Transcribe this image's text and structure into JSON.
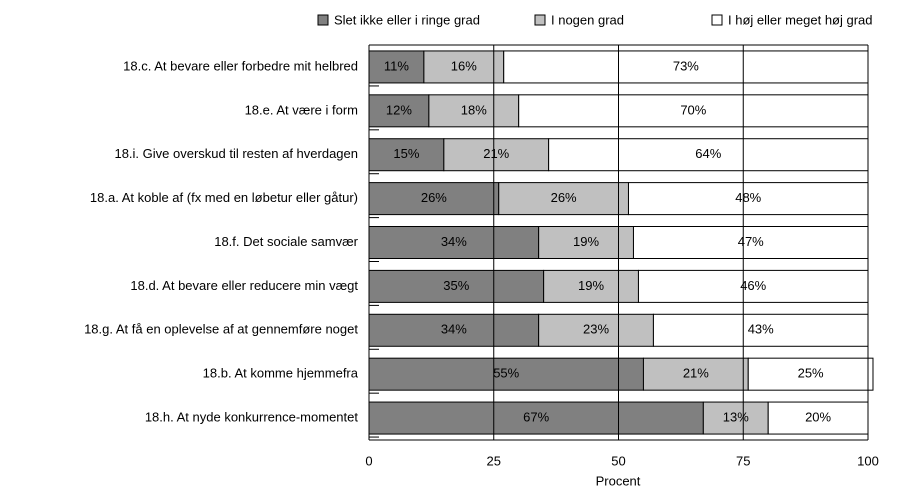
{
  "chart_data": {
    "type": "bar",
    "orientation": "horizontal",
    "stacked": true,
    "categories": [
      "18.c. At bevare eller forbedre mit helbred",
      "18.e. At være i form",
      "18.i. Give overskud til resten af hverdagen",
      "18.a. At koble af (fx med en løbetur eller gåtur)",
      "18.f. Det sociale samvær",
      "18.d. At bevare eller reducere min vægt",
      "18.g. At få en oplevelse af at gennemføre noget",
      "18.b. At komme hjemmefra",
      "18.h. At nyde konkurrence-momentet"
    ],
    "series": [
      {
        "name": "Slet ikke eller i ringe grad",
        "color": "#808080",
        "values": [
          11,
          12,
          15,
          26,
          34,
          35,
          34,
          55,
          67
        ],
        "value_labels": [
          "11%",
          "12%",
          "15%",
          "26%",
          "34%",
          "35%",
          "34%",
          "55%",
          "67%"
        ]
      },
      {
        "name": "I nogen grad",
        "color": "#c0c0c0",
        "values": [
          16,
          18,
          21,
          26,
          19,
          19,
          23,
          21,
          13
        ],
        "value_labels": [
          "16%",
          "18%",
          "21%",
          "26%",
          "19%",
          "19%",
          "23%",
          "21%",
          "13%"
        ]
      },
      {
        "name": "I høj eller meget høj grad",
        "color": "#ffffff",
        "values": [
          73,
          70,
          64,
          48,
          47,
          46,
          43,
          25,
          20
        ],
        "value_labels": [
          "73%",
          "70%",
          "64%",
          "48%",
          "47%",
          "46%",
          "43%",
          "25%",
          "20%"
        ]
      }
    ],
    "xlabel": "Procent",
    "xlim": [
      0,
      100
    ],
    "xticks": [
      0,
      25,
      50,
      75,
      100
    ],
    "grid": true,
    "legend": "top"
  }
}
